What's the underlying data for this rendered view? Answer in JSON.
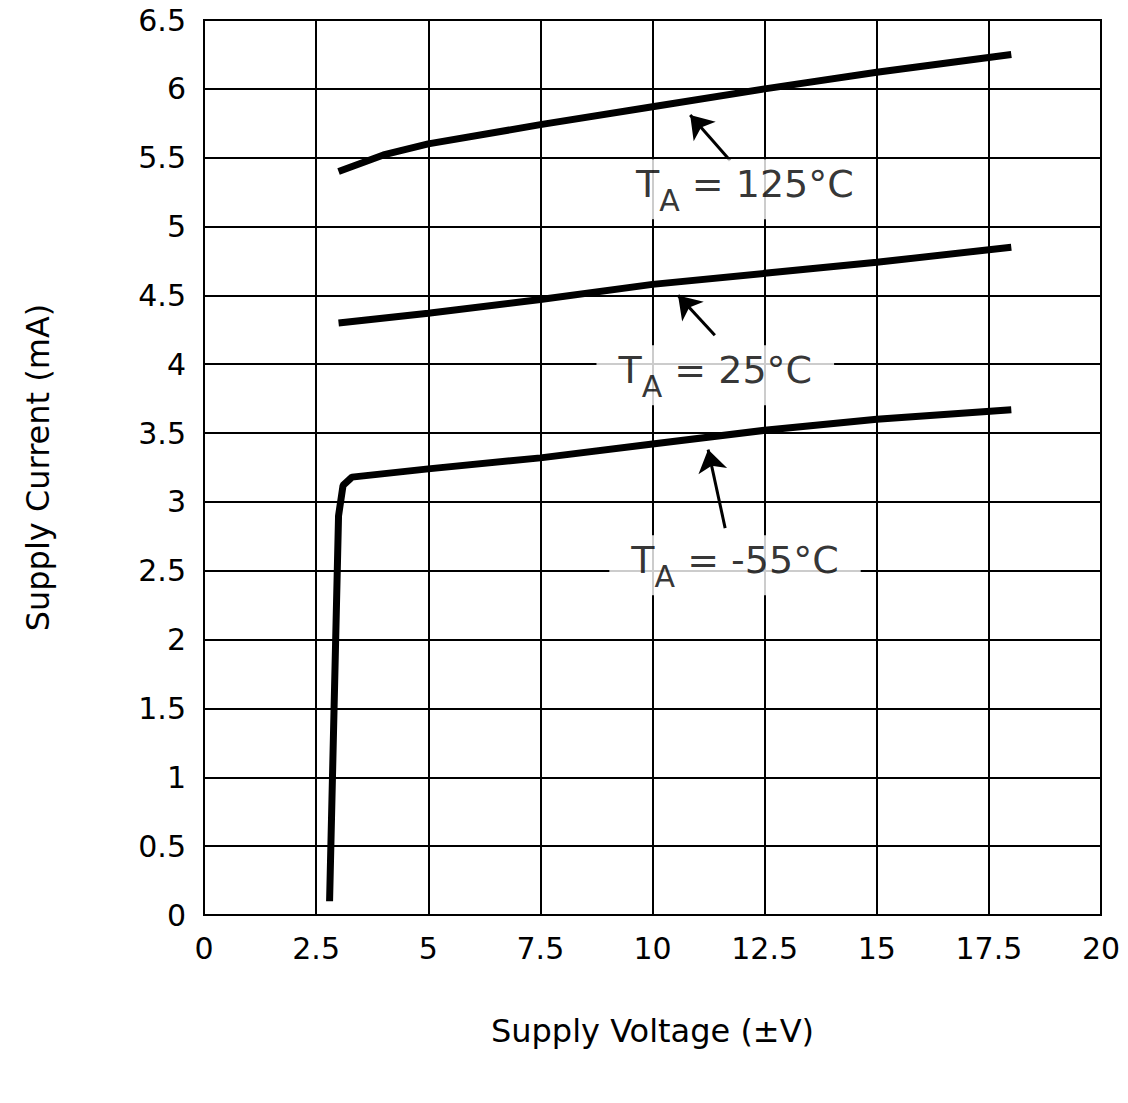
{
  "chart_data": {
    "type": "line",
    "x_label": "Supply Voltage (±V)",
    "y_label": "Supply Current (mA)",
    "xlim": [
      0,
      20
    ],
    "xticks": [
      0,
      2.5,
      5,
      7.5,
      10,
      12.5,
      15,
      17.5,
      20
    ],
    "ylim": [
      0,
      6.5
    ],
    "yticks": [
      0,
      0.5,
      1,
      1.5,
      2,
      2.5,
      3,
      3.5,
      4,
      4.5,
      5,
      5.5,
      6,
      6.5
    ],
    "grid": true,
    "line_style": "solid",
    "series": [
      {
        "color": "#000000",
        "x": [
          3,
          4,
          5,
          7.5,
          10,
          12.5,
          15,
          18
        ],
        "values": [
          5.4,
          5.52,
          5.6,
          5.74,
          5.87,
          6.0,
          6.12,
          6.25
        ]
      },
      {
        "color": "#000000",
        "x": [
          3,
          5,
          7.5,
          10,
          12.5,
          15,
          18
        ],
        "values": [
          4.3,
          4.37,
          4.47,
          4.58,
          4.66,
          4.74,
          4.85
        ]
      },
      {
        "color": "#000000",
        "x": [
          2.8,
          3.0,
          3.1,
          3.3,
          5,
          7.5,
          10,
          12.5,
          15,
          18
        ],
        "values": [
          0.1,
          2.9,
          3.12,
          3.18,
          3.24,
          3.32,
          3.42,
          3.52,
          3.6,
          3.67
        ]
      }
    ],
    "annotations": [
      {
        "text": "TA = 125°C",
        "x": 12.06,
        "y": 5.27,
        "arrow_from": [
          11.73,
          5.48
        ],
        "arrow_to": [
          10.84,
          5.81
        ]
      },
      {
        "text": "TA = 25°C",
        "x": 11.4,
        "y": 3.92,
        "arrow_from": [
          11.39,
          4.21
        ],
        "arrow_to": [
          10.57,
          4.5
        ]
      },
      {
        "text": "TA = -55°C",
        "x": 11.84,
        "y": 2.54,
        "arrow_from": [
          11.62,
          2.81
        ],
        "arrow_to": [
          11.24,
          3.38
        ]
      }
    ]
  }
}
